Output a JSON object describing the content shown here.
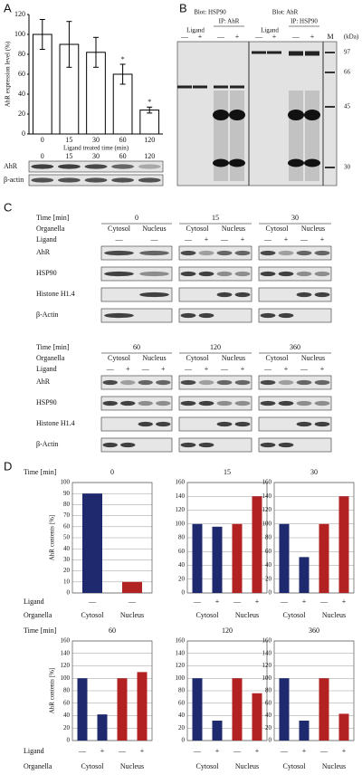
{
  "panels": [
    "A",
    "B",
    "C",
    "D"
  ],
  "chart_data": [
    {
      "type": "bar",
      "ylabel": "AhR expression level (%)",
      "xlabel": "Ligand treated time (min)",
      "categories": [
        "0",
        "15",
        "30",
        "60",
        "120"
      ],
      "values": [
        100,
        90,
        82,
        60,
        24
      ],
      "errors": [
        15,
        23,
        15,
        10,
        3
      ],
      "annotations": [
        null,
        null,
        null,
        "*",
        "*"
      ],
      "color": "#ffffff",
      "ylim": [
        0,
        120
      ],
      "yticks": [
        0,
        20,
        40,
        60,
        80,
        100,
        120
      ]
    },
    {
      "type": "bar",
      "title": "0",
      "ylabel": "AhR contents [%]",
      "categories": [
        "—",
        "—"
      ],
      "groups": [
        "Cytosol",
        "Nucleus"
      ],
      "values": [
        90,
        10
      ],
      "colors": [
        "#1f2a6e",
        "#b22222"
      ],
      "ylim": [
        0,
        100
      ],
      "yticks": [
        0,
        10,
        20,
        30,
        40,
        50,
        60,
        70,
        80,
        90,
        100
      ],
      "grid": true
    },
    {
      "type": "bar",
      "title": "15",
      "categories": [
        "—",
        "+",
        "—",
        "+"
      ],
      "groups": [
        "Cytosol",
        "Nucleus"
      ],
      "values": [
        100,
        96,
        100,
        140
      ],
      "colors": [
        "#1f2a6e",
        "#1f2a6e",
        "#b22222",
        "#b22222"
      ],
      "ylim": [
        0,
        160
      ],
      "yticks": [
        0,
        20,
        40,
        60,
        80,
        100,
        120,
        140,
        160
      ],
      "grid": true
    },
    {
      "type": "bar",
      "title": "30",
      "categories": [
        "—",
        "+",
        "—",
        "+"
      ],
      "groups": [
        "Cytosol",
        "Nucleus"
      ],
      "values": [
        100,
        52,
        100,
        140
      ],
      "colors": [
        "#1f2a6e",
        "#1f2a6e",
        "#b22222",
        "#b22222"
      ],
      "ylim": [
        0,
        160
      ],
      "yticks": [
        0,
        20,
        40,
        60,
        80,
        100,
        120,
        140,
        160
      ],
      "grid": true
    },
    {
      "type": "bar",
      "title": "60",
      "ylabel": "AhR contents [%]",
      "categories": [
        "—",
        "+",
        "—",
        "+"
      ],
      "groups": [
        "Cytosol",
        "Nucleus"
      ],
      "values": [
        100,
        42,
        100,
        110
      ],
      "colors": [
        "#1f2a6e",
        "#1f2a6e",
        "#b22222",
        "#b22222"
      ],
      "ylim": [
        0,
        160
      ],
      "yticks": [
        0,
        20,
        40,
        60,
        80,
        100,
        120,
        140,
        160
      ],
      "grid": true
    },
    {
      "type": "bar",
      "title": "120",
      "categories": [
        "—",
        "+",
        "—",
        "+"
      ],
      "groups": [
        "Cytosol",
        "Nucleus"
      ],
      "values": [
        100,
        32,
        100,
        76
      ],
      "colors": [
        "#1f2a6e",
        "#1f2a6e",
        "#b22222",
        "#b22222"
      ],
      "ylim": [
        0,
        160
      ],
      "yticks": [
        0,
        20,
        40,
        60,
        80,
        100,
        120,
        140,
        160
      ],
      "grid": true
    },
    {
      "type": "bar",
      "title": "360",
      "categories": [
        "—",
        "+",
        "—",
        "+"
      ],
      "groups": [
        "Cytosol",
        "Nucleus"
      ],
      "values": [
        100,
        32,
        100,
        43
      ],
      "colors": [
        "#1f2a6e",
        "#1f2a6e",
        "#b22222",
        "#b22222"
      ],
      "ylim": [
        0,
        160
      ],
      "yticks": [
        0,
        20,
        40,
        60,
        80,
        100,
        120,
        140,
        160
      ],
      "grid": true
    }
  ],
  "panel_a_blot": {
    "rows": [
      "AhR",
      "β-actin"
    ]
  },
  "panel_b": {
    "left": {
      "blot": "Blot: HSP90",
      "ip": "IP: AhR",
      "ligand": "Ligand",
      "lanes": [
        "—",
        "+",
        "—",
        "+"
      ]
    },
    "right": {
      "blot": "Blot: AhR",
      "ip": "IP: HSP90",
      "ligand": "Ligand",
      "lanes": [
        "—",
        "+",
        "—",
        "+"
      ]
    },
    "marker": "M",
    "unit": "(kDa)",
    "sizes": [
      "97",
      "66",
      "45",
      "30"
    ]
  },
  "panel_c": {
    "row_labels": [
      "Time [min]",
      "Organella",
      "Ligand"
    ],
    "proteins": [
      "AhR",
      "HSP90",
      "Histone H1.4",
      "β-Actin"
    ],
    "times": [
      "0",
      "15",
      "30",
      "60",
      "120",
      "360"
    ],
    "organella": [
      "Cytosol",
      "Nucleus"
    ],
    "ligand": [
      [
        "—",
        "—"
      ],
      [
        "—",
        "+",
        "—",
        "+"
      ],
      [
        "—",
        "+",
        "—",
        "+"
      ],
      [
        "—",
        "+",
        "—",
        "+"
      ],
      [
        "—",
        "+",
        "—",
        "+"
      ],
      [
        "—",
        "+",
        "—",
        "+"
      ]
    ]
  },
  "panel_d": {
    "row_labels": [
      "Time [min]",
      "Ligand",
      "Organella"
    ]
  }
}
